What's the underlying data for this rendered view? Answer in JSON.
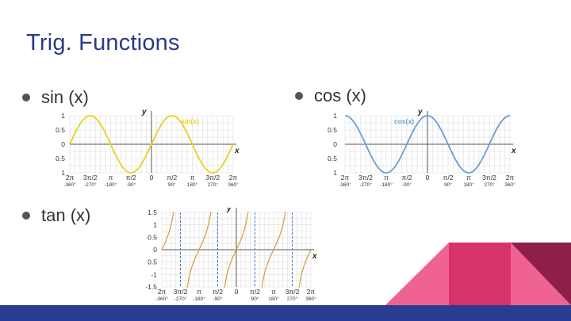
{
  "slide": {
    "title": "Trig. Functions",
    "bullets": [
      "sin (x)",
      "cos (x)",
      "tan (x)"
    ],
    "colors": {
      "title": "#2a3a87",
      "footer": "#2b3d91",
      "sin": "#e8d21b",
      "cos": "#6a9ed2",
      "tan": "#d89a3a",
      "grid": "#dddddd",
      "dashed": "#3b7bd0",
      "deco_pink": "#f06292",
      "deco_magenta": "#d6336c",
      "deco_maroon": "#8e1f4a"
    }
  },
  "chart_data": [
    {
      "type": "line",
      "function": "sin",
      "series": [
        {
          "name": "sin(x)"
        }
      ],
      "xlabel": "x",
      "ylabel": "y",
      "y_ticks": [
        "1",
        "0.5",
        "0",
        "0.5",
        "1"
      ],
      "x_ticks_pi": [
        "2π",
        "3π/2",
        "π",
        "π/2",
        "0",
        "π/2",
        "π",
        "3π/2",
        "2π"
      ],
      "x_ticks_deg": [
        "-360°",
        "-270°",
        "-180°",
        "-90°",
        "",
        "90°",
        "180°",
        "270°",
        "360°"
      ],
      "ylim": [
        -1,
        1
      ],
      "xlim_deg": [
        -360,
        360
      ]
    },
    {
      "type": "line",
      "function": "cos",
      "series": [
        {
          "name": "cos(x)"
        }
      ],
      "xlabel": "x",
      "ylabel": "y",
      "y_ticks": [
        "1",
        "0.5",
        "0",
        "0.5",
        "1"
      ],
      "x_ticks_pi": [
        "2π",
        "3π/2",
        "π",
        "π/2",
        "0",
        "π/2",
        "π",
        "3π/2",
        "2π"
      ],
      "x_ticks_deg": [
        "-360°",
        "-270°",
        "-180°",
        "-90°",
        "",
        "90°",
        "180°",
        "270°",
        "360°"
      ],
      "ylim": [
        -1,
        1
      ],
      "xlim_deg": [
        -360,
        360
      ]
    },
    {
      "type": "line",
      "function": "tan",
      "xlabel": "x",
      "ylabel": "y",
      "y_ticks": [
        "1.5",
        "1",
        "0.5",
        "0",
        "0.5",
        "-1",
        "-1.5"
      ],
      "x_ticks_pi": [
        "2π",
        "3π/2",
        "π",
        "π/2",
        "0",
        "π/2",
        "π",
        "3π/2",
        "2π"
      ],
      "x_ticks_deg": [
        "-360°",
        "-270°",
        "-180°",
        "-90°",
        "",
        "90°",
        "180°",
        "270°",
        "360°"
      ],
      "ylim": [
        -1.5,
        1.5
      ],
      "xlim_deg": [
        -360,
        360
      ],
      "asymptotes_deg": [
        -270,
        -90,
        90,
        270
      ]
    }
  ]
}
